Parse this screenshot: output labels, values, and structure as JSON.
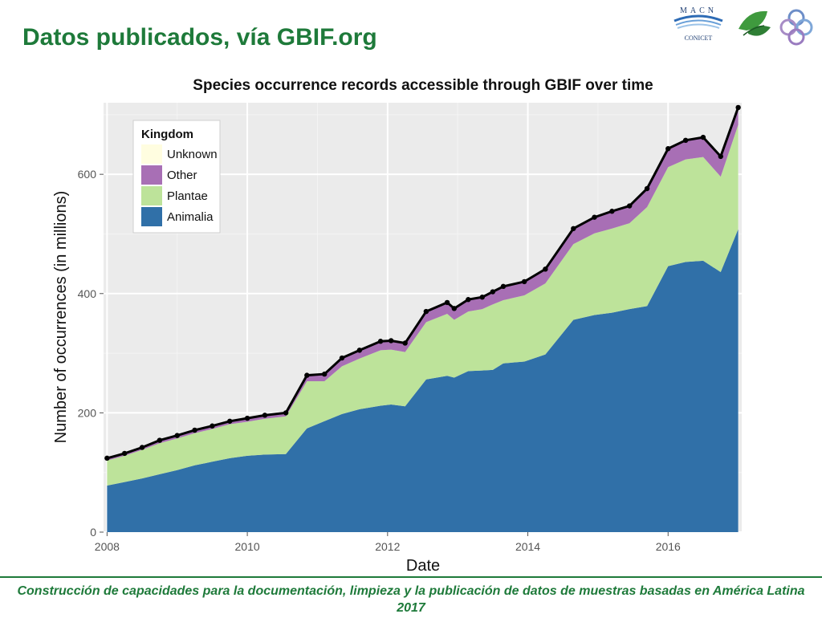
{
  "slide": {
    "title": "Datos publicados, vía GBIF.org",
    "footer": "Construcción de capacidades para la documentación, limpieza y la publicación de datos de muestras basadas en América Latina 2017",
    "logos": {
      "macn_top": "MACN",
      "macn_bottom": "CONICET"
    }
  },
  "colors": {
    "title_green": "#1e7a3a",
    "unknown": "#fffde0",
    "other": "#a86fb5",
    "plantae": "#bde39a",
    "animalia": "#3070a8",
    "total_line": "#000000",
    "panel_bg": "#ebebeb"
  },
  "chart_data": {
    "type": "area",
    "title": "Species occurrence records accessible through GBIF over time",
    "xlabel": "Date",
    "ylabel": "Number of occurrences (in millions)",
    "xlim": [
      2007.95,
      2017.05
    ],
    "ylim": [
      0,
      720
    ],
    "x_ticks": [
      2008,
      2010,
      2012,
      2014,
      2016
    ],
    "y_ticks": [
      0,
      200,
      400,
      600
    ],
    "grid": true,
    "legend": {
      "title": "Kingdom",
      "position": "top-left",
      "entries": [
        "Unknown",
        "Other",
        "Plantae",
        "Animalia"
      ]
    },
    "x": [
      2008.0,
      2008.25,
      2008.5,
      2008.75,
      2009.0,
      2009.25,
      2009.5,
      2009.75,
      2010.0,
      2010.25,
      2010.55,
      2010.85,
      2011.1,
      2011.35,
      2011.6,
      2011.9,
      2012.05,
      2012.25,
      2012.55,
      2012.85,
      2012.95,
      2013.15,
      2013.35,
      2013.5,
      2013.65,
      2013.95,
      2014.25,
      2014.65,
      2014.95,
      2015.2,
      2015.45,
      2015.7,
      2016.0,
      2016.25,
      2016.5,
      2016.75,
      2017.0
    ],
    "series": [
      {
        "name": "Animalia",
        "values": [
          78,
          84,
          90,
          97,
          104,
          112,
          118,
          124,
          128,
          130,
          131,
          174,
          186,
          198,
          206,
          212,
          214,
          211,
          256,
          262,
          259,
          270,
          271,
          272,
          283,
          286,
          298,
          356,
          364,
          368,
          374,
          379,
          446,
          453,
          455,
          436,
          508
        ]
      },
      {
        "name": "Plantae",
        "values": [
          42,
          44,
          48,
          52,
          53,
          54,
          55,
          57,
          57,
          60,
          63,
          79,
          67,
          80,
          85,
          93,
          92,
          91,
          96,
          104,
          97,
          100,
          103,
          110,
          106,
          111,
          119,
          127,
          137,
          141,
          144,
          166,
          166,
          172,
          174,
          160,
          175
        ]
      },
      {
        "name": "Other",
        "values": [
          3,
          3,
          3,
          4,
          4,
          4,
          4,
          4,
          5,
          5,
          5,
          9,
          11,
          13,
          13,
          14,
          14,
          14,
          17,
          18,
          18,
          19,
          19,
          20,
          22,
          22,
          23,
          25,
          26,
          28,
          28,
          30,
          30,
          31,
          32,
          33,
          28
        ]
      },
      {
        "name": "Unknown",
        "values": [
          1,
          1,
          1,
          1,
          1,
          1,
          1,
          1,
          1,
          1,
          1,
          1,
          1,
          1,
          1,
          1,
          1,
          1,
          1,
          1,
          1,
          1,
          1,
          1,
          1,
          1,
          1,
          1,
          1,
          1,
          1,
          1,
          1,
          1,
          1,
          1,
          1
        ]
      }
    ],
    "total": [
      124,
      132,
      142,
      154,
      162,
      171,
      178,
      186,
      191,
      196,
      200,
      263,
      265,
      292,
      305,
      320,
      321,
      317,
      370,
      385,
      375,
      390,
      394,
      403,
      412,
      420,
      441,
      509,
      528,
      538,
      547,
      576,
      643,
      657,
      662,
      630,
      712
    ]
  }
}
